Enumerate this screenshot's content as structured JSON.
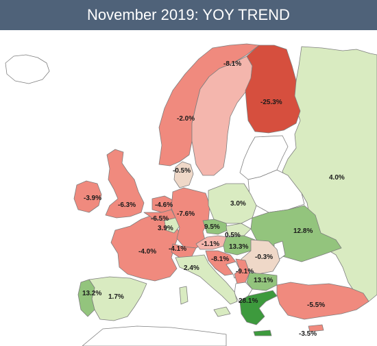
{
  "header": {
    "title": "November 2019: YOY TREND"
  },
  "legend_colors": {
    "strong_negative": "#d64f3e",
    "negative": "#f08a7e",
    "light_negative": "#f4b6ad",
    "neutral": "#efd8c8",
    "light_positive": "#d9ebc1",
    "positive": "#93c47d",
    "strong_positive": "#3d9a3d",
    "no_data": "#ffffff"
  },
  "countries": [
    {
      "name": "Norway",
      "value": "-8.1%",
      "color": "#f08a7e"
    },
    {
      "name": "Finland",
      "value": "-25.3%",
      "color": "#d64f3e"
    },
    {
      "name": "Sweden",
      "value": "-2.0%",
      "color": "#f4b6ad"
    },
    {
      "name": "Russia",
      "value": "4.0%",
      "color": "#d9ebc1"
    },
    {
      "name": "Denmark",
      "value": "-0.5%",
      "color": "#efd8c8"
    },
    {
      "name": "Ireland",
      "value": "-3.9%",
      "color": "#f08a7e"
    },
    {
      "name": "United Kingdom",
      "value": "-6.3%",
      "color": "#f08a7e"
    },
    {
      "name": "Netherlands",
      "value": "-4.6%",
      "color": "#f08a7e"
    },
    {
      "name": "Belgium",
      "value": "-6.5%",
      "color": "#f08a7e"
    },
    {
      "name": "Luxembourg",
      "value": "3.9%",
      "color": "#d9ebc1"
    },
    {
      "name": "Germany",
      "value": "-7.6%",
      "color": "#f08a7e"
    },
    {
      "name": "Poland",
      "value": "3.0%",
      "color": "#d9ebc1"
    },
    {
      "name": "Ukraine",
      "value": "12.8%",
      "color": "#93c47d"
    },
    {
      "name": "Czech Republic",
      "value": "9.5%",
      "color": "#93c47d"
    },
    {
      "name": "Slovakia",
      "value": "0.5%",
      "color": "#d9ebc1"
    },
    {
      "name": "Hungary",
      "value": "13.3%",
      "color": "#93c47d"
    },
    {
      "name": "Austria",
      "value": "-1.1%",
      "color": "#f4b6ad"
    },
    {
      "name": "France",
      "value": "-4.0%",
      "color": "#f08a7e"
    },
    {
      "name": "Switzerland",
      "value": "-4.1%",
      "color": "#f08a7e"
    },
    {
      "name": "Romania",
      "value": "-0.3%",
      "color": "#efd8c8"
    },
    {
      "name": "Croatia",
      "value": "-8.1%",
      "color": "#f08a7e"
    },
    {
      "name": "Italy",
      "value": "2.4%",
      "color": "#d9ebc1"
    },
    {
      "name": "Serbia",
      "value": "-9.1%",
      "color": "#f08a7e"
    },
    {
      "name": "Bulgaria",
      "value": "13.1%",
      "color": "#93c47d"
    },
    {
      "name": "Portugal",
      "value": "13.2%",
      "color": "#93c47d"
    },
    {
      "name": "Spain",
      "value": "1.7%",
      "color": "#d9ebc1"
    },
    {
      "name": "Greece",
      "value": "28.1%",
      "color": "#3d9a3d"
    },
    {
      "name": "Turkey",
      "value": "-5.5%",
      "color": "#f08a7e"
    },
    {
      "name": "Cyprus",
      "value": "-3.5%",
      "color": "#f08a7e"
    }
  ]
}
